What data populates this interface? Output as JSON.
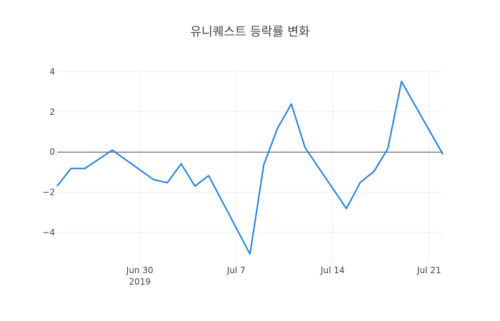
{
  "chart_data": {
    "type": "line",
    "title": "유니퀘스트 등락률 변화",
    "xlabel": "",
    "ylabel": "",
    "ylim": [
      -5.5,
      4.2
    ],
    "grid": true,
    "legend": false,
    "y_ticks": [
      4,
      2,
      0,
      -2,
      -4
    ],
    "y_tick_labels": [
      "4",
      "2",
      "0",
      "−2",
      "−4"
    ],
    "x_ticks": [
      {
        "label": "Jun 30",
        "sublabel": "2019",
        "day": 6
      },
      {
        "label": "Jul 7",
        "sublabel": "",
        "day": 13
      },
      {
        "label": "Jul 14",
        "sublabel": "",
        "day": 20
      },
      {
        "label": "Jul 21",
        "sublabel": "",
        "day": 27
      }
    ],
    "line_color": "#1f7fe0",
    "series": [
      {
        "name": "등락률",
        "x": [
          "2019-06-24",
          "2019-06-25",
          "2019-06-26",
          "2019-06-27",
          "2019-06-28",
          "2019-07-01",
          "2019-07-02",
          "2019-07-03",
          "2019-07-04",
          "2019-07-05",
          "2019-07-08",
          "2019-07-09",
          "2019-07-10",
          "2019-07-11",
          "2019-07-12",
          "2019-07-15",
          "2019-07-16",
          "2019-07-17",
          "2019-07-18",
          "2019-07-19",
          "2019-07-22"
        ],
        "day": [
          0,
          1,
          2,
          3,
          4,
          7,
          8,
          9,
          10,
          11,
          14,
          15,
          16,
          17,
          18,
          21,
          22,
          23,
          24,
          25,
          28
        ],
        "values": [
          -1.69,
          -0.82,
          -0.82,
          -0.36,
          0.1,
          -1.37,
          -1.52,
          -0.58,
          -1.69,
          -1.17,
          -5.07,
          -0.63,
          1.19,
          2.39,
          0.22,
          -2.81,
          -1.51,
          -0.96,
          0.17,
          3.51,
          -0.11
        ]
      }
    ]
  }
}
